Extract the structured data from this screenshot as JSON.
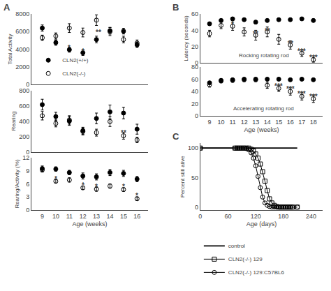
{
  "chart_data": [
    {
      "type": "scatter",
      "title": "A",
      "ylabel": "Total Activity",
      "x": [
        9,
        10,
        11,
        12,
        13,
        14,
        15,
        16
      ],
      "series": [
        {
          "name": "CLN2(+/+)",
          "color": "black",
          "marker": "circle",
          "values": [
            6400,
            4750,
            3950,
            3600,
            5100,
            6100,
            6050,
            4500
          ],
          "errors": [
            350,
            300,
            280,
            300,
            380,
            380,
            320,
            300
          ]
        },
        {
          "name": "CLN2(-/-)",
          "color": "black",
          "marker": "circle-open",
          "values": [
            5300,
            5500,
            6400,
            5900,
            7300,
            6000,
            5100,
            4700
          ],
          "errors": [
            300,
            350,
            500,
            500,
            600,
            450,
            380,
            350
          ]
        }
      ],
      "xlim": [
        8.2,
        16.8
      ],
      "xticks": [
        9,
        10,
        11,
        12,
        13,
        14,
        15,
        16
      ],
      "ylim": [
        0,
        8000
      ],
      "yticks": [
        0,
        2000,
        4000,
        6000,
        8000
      ],
      "tick_labels": "y",
      "grid": false,
      "legend": "lower left",
      "annotations": [
        {
          "text": "*",
          "x": 11,
          "y": 3600
        },
        {
          "text": "*",
          "x": 12,
          "y": 3200
        },
        {
          "text": "**",
          "x": 13.15,
          "y": 5350
        }
      ]
    },
    {
      "type": "scatter",
      "ylabel": "Rearing",
      "x": [
        9,
        10,
        11,
        12,
        13,
        14,
        15,
        16
      ],
      "series": [
        {
          "name": "CLN2(+/+)",
          "color": "black",
          "marker": "circle",
          "values": [
            615,
            460,
            400,
            275,
            435,
            520,
            505,
            295
          ],
          "errors": [
            70,
            55,
            55,
            45,
            70,
            90,
            75,
            65
          ]
        },
        {
          "name": "CLN2(-/-)",
          "color": "black",
          "marker": "circle-open",
          "values": [
            470,
            370,
            415,
            265,
            250,
            395,
            210,
            155
          ],
          "errors": [
            55,
            45,
            55,
            45,
            45,
            65,
            45,
            35
          ]
        }
      ],
      "xlim": [
        8.2,
        16.8
      ],
      "xticks": [
        9,
        10,
        11,
        12,
        13,
        14,
        15,
        16
      ],
      "ylim": [
        0,
        800
      ],
      "yticks": [
        0,
        200,
        400,
        600,
        800
      ],
      "tick_labels": "y",
      "grid": false,
      "annotations": [
        {
          "text": "**",
          "x": 15,
          "y": 175
        }
      ]
    },
    {
      "type": "scatter",
      "ylabel": "Rearing/Activity (%)",
      "xlabel": "Age (weeks)",
      "x": [
        9,
        10,
        11,
        12,
        13,
        14,
        15,
        16
      ],
      "series": [
        {
          "name": "CLN2(+/+)",
          "color": "black",
          "marker": "circle",
          "values": [
            9.5,
            9.4,
            8.6,
            7.8,
            7.6,
            8.6,
            8.4,
            7.1
          ],
          "errors": [
            0.6,
            0.5,
            0.5,
            0.7,
            0.7,
            0.7,
            0.7,
            0.6
          ]
        },
        {
          "name": "CLN2(-/-)",
          "color": "black",
          "marker": "circle-open",
          "values": [
            9.2,
            6.6,
            6.9,
            5.1,
            4.8,
            5.5,
            4.7,
            2.6
          ],
          "errors": [
            0.5,
            0.4,
            0.5,
            0.4,
            0.5,
            0.5,
            0.4,
            0.4
          ]
        }
      ],
      "xlim": [
        8.2,
        16.8
      ],
      "xticks": [
        9,
        10,
        11,
        12,
        13,
        14,
        15,
        16
      ],
      "ylim": [
        0,
        12
      ],
      "yticks": [
        0,
        3,
        6,
        9,
        12
      ],
      "grid": false,
      "annotations": [
        {
          "text": "*",
          "x": 10,
          "y": 5.9
        },
        {
          "text": "*",
          "x": 12,
          "y": 4.5
        },
        {
          "text": "*",
          "x": 13,
          "y": 4.1
        },
        {
          "text": "*",
          "x": 15,
          "y": 4.1
        },
        {
          "text": "*",
          "x": 16,
          "y": 2.0
        }
      ]
    },
    {
      "type": "scatter",
      "title": "B",
      "ylabel": "Latency (seconds)",
      "x": [
        9,
        10,
        11,
        12,
        13,
        14,
        15,
        16,
        17,
        18
      ],
      "series": [
        {
          "name": "CLN2(+/+)",
          "color": "black",
          "marker": "circle",
          "values": [
            48,
            52,
            54,
            53,
            50,
            52,
            53,
            53,
            54,
            52
          ],
          "errors": [
            2,
            1,
            1,
            1,
            2,
            1,
            1,
            1,
            1,
            1
          ]
        },
        {
          "name": "CLN2(-/-)",
          "color": "black",
          "marker": "circle-open",
          "values": [
            36,
            46,
            45,
            38,
            34,
            38,
            29,
            22,
            12,
            4
          ],
          "errors": [
            4,
            4,
            5,
            5,
            6,
            6,
            6,
            5,
            4,
            3
          ]
        }
      ],
      "xlim": [
        8.2,
        18.8
      ],
      "xticks": [
        9,
        10,
        11,
        12,
        13,
        14,
        15,
        16,
        17,
        18
      ],
      "ylim": [
        0,
        60
      ],
      "yticks": [
        0,
        20,
        40,
        60
      ],
      "tick_labels": "y",
      "grid": false,
      "annotations": [
        {
          "text": "Rocking rotating rod"
        },
        {
          "text": "*",
          "x": 11,
          "y": 41
        },
        {
          "text": "**",
          "x": 13,
          "y": 29
        },
        {
          "text": "**",
          "x": 14,
          "y": 33
        },
        {
          "text": "**",
          "x": 16,
          "y": 17
        },
        {
          "text": "***",
          "x": 17,
          "y": 8
        },
        {
          "text": "***",
          "x": 18,
          "y": 0
        }
      ]
    },
    {
      "type": "scatter",
      "xlabel": "Age (weeks)",
      "x": [
        9,
        10,
        11,
        12,
        13,
        14,
        15,
        16,
        17,
        18
      ],
      "series": [
        {
          "name": "CLN2(+/+)",
          "color": "black",
          "marker": "circle",
          "values": [
            54,
            58,
            59,
            60,
            60,
            60,
            60,
            59,
            60,
            59
          ],
          "errors": [
            2,
            1,
            1,
            1,
            1,
            1,
            1,
            1,
            1,
            1
          ]
        },
        {
          "name": "CLN2(-/-)",
          "color": "black",
          "marker": "circle-open",
          "values": [
            51,
            57,
            58,
            59,
            59,
            50,
            45,
            40,
            32,
            28
          ],
          "errors": [
            4,
            3,
            3,
            3,
            3,
            5,
            5,
            6,
            6,
            6
          ]
        }
      ],
      "xlim": [
        8.2,
        18.8
      ],
      "xticks": [
        9,
        10,
        11,
        12,
        13,
        14,
        15,
        16,
        17,
        18
      ],
      "ylim": [
        0,
        80
      ],
      "yticks": [
        0,
        20,
        40,
        60,
        80
      ],
      "grid": false,
      "annotations": [
        {
          "text": "Accelerating rotating rod"
        },
        {
          "text": "***",
          "x": 15,
          "y": 40
        },
        {
          "text": "***",
          "x": 16,
          "y": 35
        },
        {
          "text": "***",
          "x": 17,
          "y": 27
        },
        {
          "text": "***",
          "x": 18,
          "y": 23
        }
      ]
    },
    {
      "type": "line",
      "title": "C",
      "xlabel": "Age (days)",
      "ylabel": "Percent still alive",
      "series": [
        {
          "name": "control",
          "color": "black",
          "line_style": "solid",
          "x": [
            0,
            210
          ],
          "values": [
            100,
            100
          ]
        },
        {
          "name": "CLN2(-/-) 129",
          "color": "black",
          "line_style": "solid",
          "marker": "square-open",
          "x": [
            0,
            75,
            80,
            85,
            90,
            95,
            100,
            105,
            110,
            115,
            120,
            125,
            130,
            135,
            140,
            145,
            150,
            155,
            160,
            165,
            170,
            175,
            180,
            185,
            190,
            195,
            200,
            210
          ],
          "values": [
            100,
            100,
            100,
            100,
            100,
            100,
            100,
            100,
            98,
            95,
            90,
            83,
            73,
            60,
            44,
            28,
            14,
            7,
            3,
            1,
            0,
            0,
            0,
            0,
            0,
            0,
            0,
            0
          ]
        },
        {
          "name": "CLN2(-/-) 129:C57BL6",
          "color": "black",
          "line_style": "solid",
          "marker": "circle-open",
          "x": [
            0,
            75,
            80,
            85,
            90,
            95,
            100,
            105,
            110,
            115,
            120,
            125,
            130,
            135,
            140,
            145,
            150,
            155,
            160,
            165,
            170,
            175,
            180,
            185,
            190,
            195,
            200,
            210
          ],
          "values": [
            100,
            100,
            100,
            100,
            100,
            100,
            99,
            97,
            92,
            83,
            70,
            52,
            33,
            17,
            7,
            3,
            1,
            0,
            0,
            0,
            0,
            0,
            0,
            0,
            0,
            0,
            0,
            0
          ]
        }
      ],
      "xlim": [
        0,
        265
      ],
      "xticks": [
        0,
        60,
        120,
        180,
        240
      ],
      "ylim": [
        -5,
        108
      ],
      "yticks": [
        0,
        50,
        100
      ],
      "grid": false,
      "legend": "bottom"
    }
  ]
}
